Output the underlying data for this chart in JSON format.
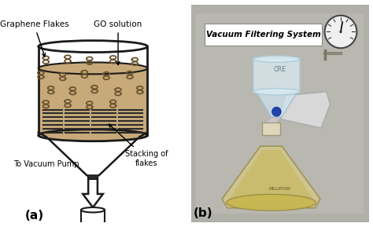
{
  "title_a": "(a)",
  "title_b": "(b)",
  "label_graphene": "Graphene Flakes",
  "label_go": "GO solution",
  "label_vacuum": "To Vacuum Pump",
  "label_stacking": "Stacking of\nflakes",
  "label_vfs": "Vacuum Filtering System",
  "bg_color": "#ffffff",
  "solution_color": "#c8aa7a",
  "container_edge": "#1a1a1a",
  "flake_color": "#6b5530",
  "stacked_color": "#2a2a2a",
  "photo_bg": "#a8a8a0",
  "metal_bg": "#b0b0a8"
}
